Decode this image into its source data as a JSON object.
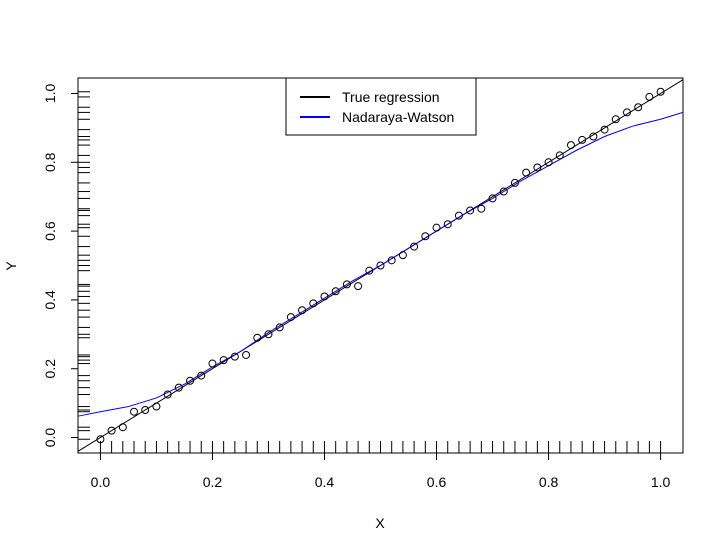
{
  "chart_data": {
    "type": "scatter",
    "xlabel": "X",
    "ylabel": "Y",
    "xlim": [
      -0.04,
      1.04
    ],
    "ylim": [
      -0.045,
      1.045
    ],
    "xticks": [
      0.0,
      0.2,
      0.4,
      0.6,
      0.8,
      1.0
    ],
    "xtick_labels": [
      "0.0",
      "0.2",
      "0.4",
      "0.6",
      "0.8",
      "1.0"
    ],
    "yticks": [
      0.0,
      0.2,
      0.4,
      0.6,
      0.8,
      1.0
    ],
    "ytick_labels": [
      "0.0",
      "0.2",
      "0.4",
      "0.6",
      "0.8",
      "1.0"
    ],
    "legend_position": "top-center",
    "points": {
      "x": [
        0.0,
        0.02,
        0.04,
        0.06,
        0.08,
        0.1,
        0.12,
        0.14,
        0.16,
        0.18,
        0.2,
        0.22,
        0.24,
        0.26,
        0.28,
        0.3,
        0.32,
        0.34,
        0.36,
        0.38,
        0.4,
        0.42,
        0.44,
        0.46,
        0.48,
        0.5,
        0.52,
        0.54,
        0.56,
        0.58,
        0.6,
        0.62,
        0.64,
        0.66,
        0.68,
        0.7,
        0.72,
        0.74,
        0.76,
        0.78,
        0.8,
        0.82,
        0.84,
        0.86,
        0.88,
        0.9,
        0.92,
        0.94,
        0.96,
        0.98,
        1.0
      ],
      "y": [
        -0.005,
        0.02,
        0.03,
        0.075,
        0.08,
        0.09,
        0.125,
        0.145,
        0.165,
        0.18,
        0.215,
        0.225,
        0.235,
        0.24,
        0.29,
        0.3,
        0.32,
        0.35,
        0.37,
        0.39,
        0.41,
        0.425,
        0.445,
        0.44,
        0.485,
        0.5,
        0.515,
        0.53,
        0.555,
        0.585,
        0.61,
        0.62,
        0.645,
        0.66,
        0.665,
        0.695,
        0.715,
        0.74,
        0.77,
        0.785,
        0.8,
        0.82,
        0.85,
        0.865,
        0.875,
        0.895,
        0.925,
        0.945,
        0.96,
        0.99,
        1.005
      ]
    },
    "series": [
      {
        "name": "True regression",
        "color": "#000000",
        "x": [
          -0.04,
          1.04
        ],
        "y": [
          -0.04,
          1.04
        ]
      },
      {
        "name": "Nadaraya-Watson",
        "color": "#0000ff",
        "x": [
          -0.04,
          0.0,
          0.05,
          0.1,
          0.15,
          0.2,
          0.25,
          0.3,
          0.35,
          0.4,
          0.45,
          0.5,
          0.55,
          0.6,
          0.65,
          0.7,
          0.75,
          0.8,
          0.85,
          0.9,
          0.95,
          1.0,
          1.04
        ],
        "y": [
          0.062,
          0.075,
          0.09,
          0.115,
          0.155,
          0.205,
          0.25,
          0.305,
          0.355,
          0.405,
          0.455,
          0.5,
          0.55,
          0.6,
          0.65,
          0.695,
          0.745,
          0.79,
          0.835,
          0.875,
          0.905,
          0.925,
          0.945
        ]
      }
    ]
  }
}
